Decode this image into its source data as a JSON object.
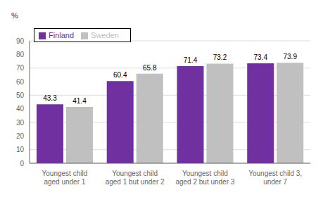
{
  "chart_data": {
    "type": "bar",
    "ylabel": "%",
    "categories": [
      "Youngest child\naged under 1",
      "Youngest child\naged 1 but under 2",
      "Youngest child\naged 2 but under 3",
      "Youngest child 3,\nunder 7"
    ],
    "series": [
      {
        "name": "Finland",
        "color": "#7030A0",
        "values": [
          43.3,
          60.4,
          71.4,
          73.4
        ]
      },
      {
        "name": "Sweden",
        "color": "#C0C0C0",
        "values": [
          41.4,
          65.8,
          73.2,
          73.9
        ]
      }
    ],
    "ylim": [
      0,
      90
    ],
    "yticks": [
      0,
      10,
      20,
      30,
      40,
      50,
      60,
      70,
      80,
      90
    ],
    "grid": true,
    "legend": "upper left",
    "data_labels": true
  }
}
